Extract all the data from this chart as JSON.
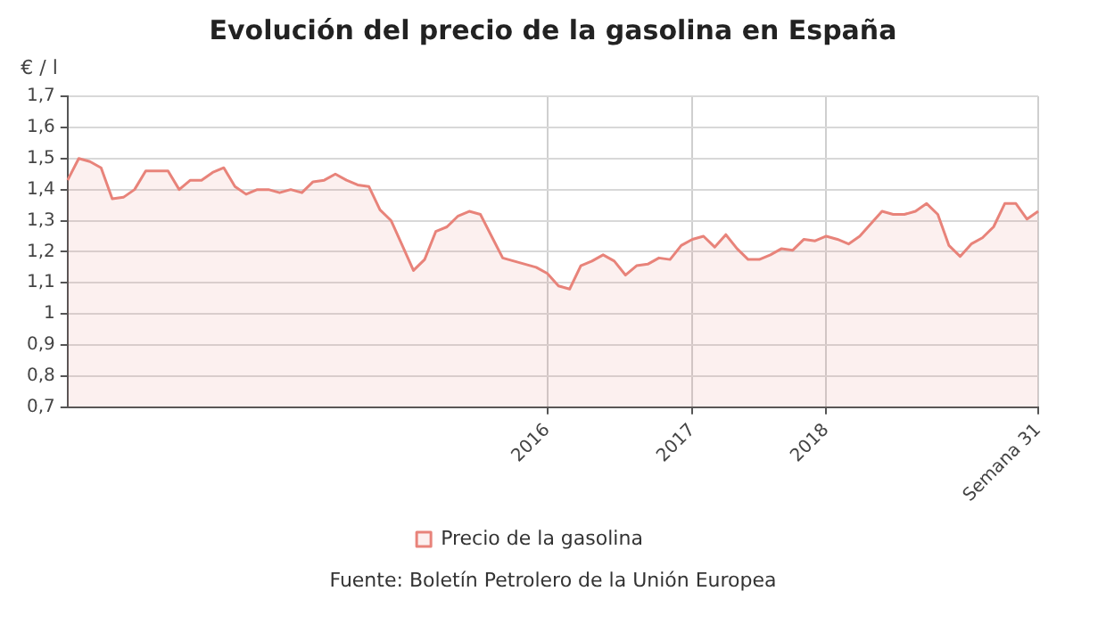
{
  "chart_data": {
    "type": "area",
    "title": "Evolución del precio de la gasolina en España",
    "ylabel": "€ / l",
    "categories": [
      null,
      null,
      null,
      null,
      null,
      null,
      null,
      null,
      null,
      null,
      null,
      null,
      null,
      null,
      null,
      null,
      null,
      null,
      null,
      null,
      null,
      null,
      null,
      null,
      null,
      null,
      null,
      null,
      null,
      null,
      null,
      null,
      null,
      null,
      null,
      null,
      null,
      null,
      null,
      null,
      null,
      null,
      null,
      "2016",
      null,
      null,
      null,
      null,
      null,
      null,
      null,
      null,
      null,
      null,
      null,
      null,
      "2017",
      null,
      null,
      null,
      null,
      null,
      null,
      null,
      null,
      null,
      null,
      null,
      "2018",
      null,
      null,
      null,
      null,
      null,
      null,
      null,
      null,
      null,
      null,
      null,
      null,
      null,
      null,
      null,
      null,
      null,
      null,
      "Semana 31"
    ],
    "series": [
      {
        "name": "Precio de la gasolina",
        "color": "#e8837a",
        "values": [
          1.43,
          1.5,
          1.49,
          1.47,
          1.37,
          1.375,
          1.4,
          1.46,
          1.46,
          1.46,
          1.4,
          1.43,
          1.43,
          1.455,
          1.47,
          1.41,
          1.385,
          1.4,
          1.4,
          1.39,
          1.4,
          1.39,
          1.425,
          1.43,
          1.45,
          1.43,
          1.415,
          1.41,
          1.335,
          1.3,
          1.22,
          1.14,
          1.175,
          1.265,
          1.28,
          1.315,
          1.33,
          1.32,
          1.25,
          1.18,
          1.17,
          1.16,
          1.15,
          1.13,
          1.09,
          1.08,
          1.155,
          1.17,
          1.19,
          1.17,
          1.125,
          1.155,
          1.16,
          1.18,
          1.175,
          1.22,
          1.24,
          1.25,
          1.215,
          1.255,
          1.21,
          1.175,
          1.175,
          1.19,
          1.21,
          1.205,
          1.24,
          1.235,
          1.25,
          1.24,
          1.225,
          1.25,
          1.29,
          1.33,
          1.32,
          1.32,
          1.33,
          1.355,
          1.32,
          1.22,
          1.185,
          1.225,
          1.245,
          1.28,
          1.355,
          1.355,
          1.305,
          1.33
        ]
      }
    ],
    "ylim": [
      0.7,
      1.7
    ],
    "yticks": [
      {
        "value": 0.7,
        "label": "0,7"
      },
      {
        "value": 0.8,
        "label": "0,8"
      },
      {
        "value": 0.9,
        "label": "0,9"
      },
      1,
      {
        "value": 1.1,
        "label": "1,1"
      },
      {
        "value": 1.2,
        "label": "1,2"
      },
      {
        "value": 1.3,
        "label": "1,3"
      },
      {
        "value": 1.4,
        "label": "1,4"
      },
      {
        "value": 1.5,
        "label": "1,5"
      },
      {
        "value": 1.6,
        "label": "1,6"
      },
      {
        "value": 1.7,
        "label": "1,7"
      }
    ],
    "grid": true,
    "legend": "bottom",
    "marker": "none",
    "line_style": "solid",
    "annotations": [
      "Fuente: Boletín Petrolero de la Unión Europea"
    ]
  }
}
